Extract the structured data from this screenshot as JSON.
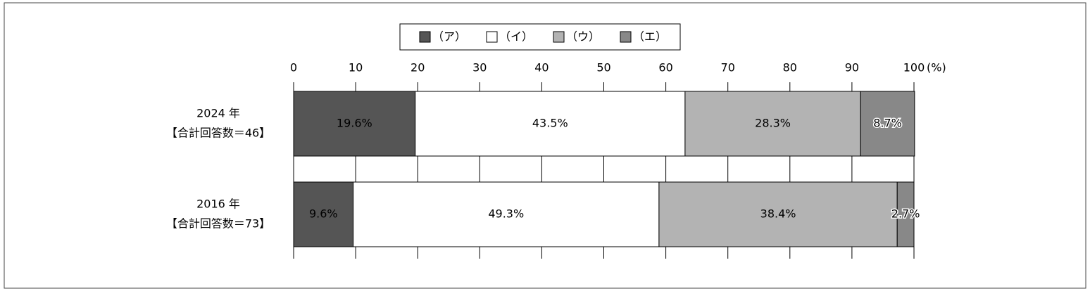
{
  "chart_data": {
    "type": "stacked-barh",
    "categories": [
      "2024 年",
      "2016 年"
    ],
    "category_sublabels": [
      "【合計回答数＝46】",
      "【合計回答数＝73】"
    ],
    "series": [
      {
        "name": "（ア）",
        "color": "#555555",
        "label_color": "#ffffff",
        "values": [
          19.6,
          9.6
        ],
        "value_labels": [
          "19.6%",
          "9.6%"
        ]
      },
      {
        "name": "（イ）",
        "color": "#ffffff",
        "label_color": "#000000",
        "values": [
          43.5,
          49.3
        ],
        "value_labels": [
          "43.5%",
          "49.3%"
        ]
      },
      {
        "name": "（ウ）",
        "color": "#b3b3b3",
        "label_color": "#000000",
        "values": [
          28.3,
          38.4
        ],
        "value_labels": [
          "28.3%",
          "38.4%"
        ]
      },
      {
        "name": "（エ）",
        "color": "#888888",
        "label_color": "#000000",
        "label_halo": true,
        "values": [
          8.7,
          2.7
        ],
        "value_labels": [
          "8.7%",
          "2.7%"
        ]
      }
    ],
    "xlim": [
      0,
      100
    ],
    "xticks": [
      0,
      10,
      20,
      30,
      40,
      50,
      60,
      70,
      80,
      90,
      100
    ],
    "x_unit": "(%)",
    "grid": true,
    "legend": "top"
  }
}
